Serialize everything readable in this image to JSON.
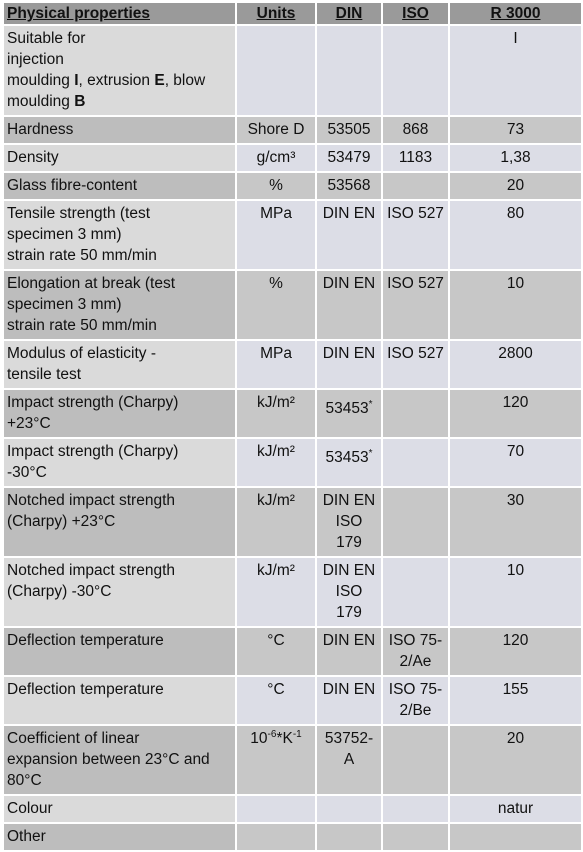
{
  "header": {
    "property": "Physical properties",
    "units": "Units",
    "din": "DIN",
    "iso": "ISO",
    "r3000": "R 3000"
  },
  "suitable": {
    "l1": "Suitable for",
    "l2": "injection",
    "l3a": "moulding ",
    "l3b": "I",
    "l3c": ", extrusion ",
    "l3d": "E",
    "l3e": ", blow",
    "l4a": "moulding ",
    "l4b": "B",
    "value": "I"
  },
  "rows": [
    {
      "property": [
        "Hardness"
      ],
      "units": "Shore D",
      "din": [
        "53505"
      ],
      "iso": [
        "868"
      ],
      "value": "73"
    },
    {
      "property": [
        "Density"
      ],
      "units": "g/cm³",
      "din": [
        "53479"
      ],
      "iso": [
        "1183"
      ],
      "value": "1,38"
    },
    {
      "property": [
        "Glass fibre-content"
      ],
      "units": "%",
      "din": [
        "53568"
      ],
      "iso": [
        ""
      ],
      "value": "20"
    },
    {
      "property": [
        "Tensile strength (test",
        "specimen 3 mm)",
        "strain rate 50 mm/min"
      ],
      "units": "MPa",
      "din": [
        "DIN EN"
      ],
      "iso": [
        "ISO 527"
      ],
      "value": "80"
    },
    {
      "property": [
        "Elongation at break (test",
        "specimen 3 mm)",
        "strain rate 50 mm/min"
      ],
      "units": "%",
      "din": [
        "DIN EN"
      ],
      "iso": [
        "ISO 527"
      ],
      "value": "10"
    },
    {
      "property": [
        "Modulus of elasticity -",
        "tensile test"
      ],
      "units": "MPa",
      "din": [
        "DIN EN"
      ],
      "iso": [
        "ISO 527"
      ],
      "value": "2800"
    },
    {
      "property": [
        "Impact strength (Charpy)",
        "+23°C"
      ],
      "units": "kJ/m²",
      "din_sup": "53453",
      "sup": "*",
      "iso": [
        ""
      ],
      "value": "120"
    },
    {
      "property": [
        "Impact strength (Charpy)",
        "-30°C"
      ],
      "units": "kJ/m²",
      "din_sup": "53453",
      "sup": "*",
      "iso": [
        ""
      ],
      "value": "70"
    },
    {
      "property": [
        "Notched impact strength",
        "(Charpy) +23°C"
      ],
      "units": "kJ/m²",
      "din": [
        "DIN EN",
        "ISO",
        "179"
      ],
      "iso": [
        ""
      ],
      "value": "30"
    },
    {
      "property": [
        "Notched impact strength",
        "(Charpy) -30°C"
      ],
      "units": "kJ/m²",
      "din": [
        "DIN EN",
        "ISO",
        "179"
      ],
      "iso": [
        ""
      ],
      "value": "10"
    },
    {
      "property": [
        "Deflection temperature"
      ],
      "units": "°C",
      "din": [
        "DIN EN"
      ],
      "iso": [
        "ISO 75-",
        "2/Ae"
      ],
      "value": "120"
    },
    {
      "property": [
        "Deflection temperature"
      ],
      "units": "°C",
      "din": [
        "DIN EN"
      ],
      "iso": [
        "ISO 75-",
        "2/Be"
      ],
      "value": "155"
    },
    {
      "property": [
        "Coefficient of linear",
        "expansion between 23°C and",
        "80°C"
      ],
      "units_base": "10",
      "units_exp1": "-6",
      "units_mid": "*K",
      "units_exp2": "-1",
      "din": [
        "53752-",
        "A"
      ],
      "iso": [
        ""
      ],
      "value": "20"
    },
    {
      "property": [
        "Colour"
      ],
      "units": "",
      "din": [
        ""
      ],
      "iso": [
        ""
      ],
      "value": "natur"
    },
    {
      "property": [
        "Other"
      ],
      "units": "",
      "din": [
        ""
      ],
      "iso": [
        ""
      ],
      "value": ""
    }
  ]
}
